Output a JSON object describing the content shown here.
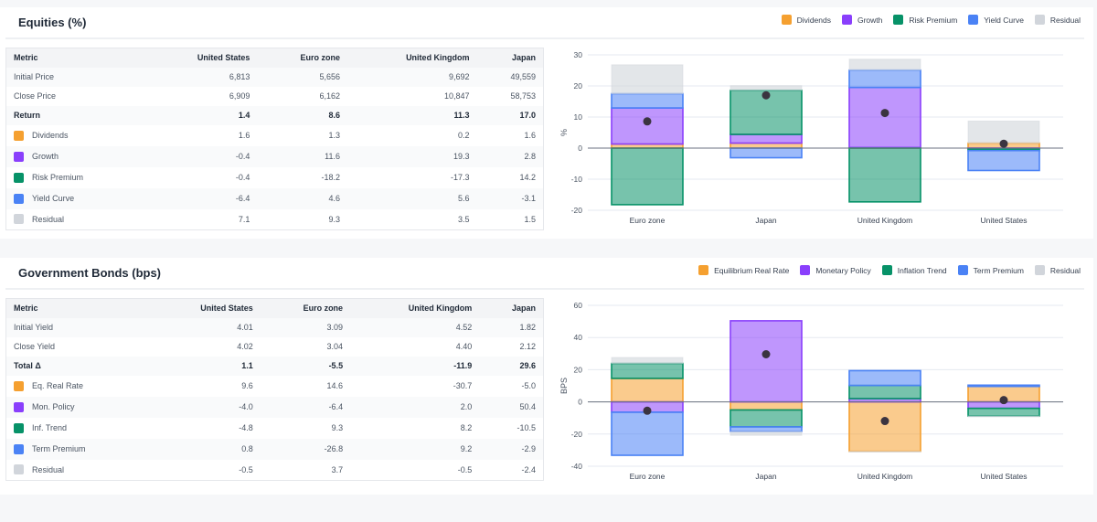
{
  "colors": {
    "orange": "#f5a030",
    "purple": "#8a3ffc",
    "green": "#079268",
    "blue": "#4a82f5",
    "gray": "#d1d5db"
  },
  "equities": {
    "title": "Equities (%)",
    "legend": [
      "Dividends",
      "Growth",
      "Risk Premium",
      "Yield Curve",
      "Residual"
    ],
    "columns": [
      "Metric",
      "United States",
      "Euro zone",
      "United Kingdom",
      "Japan"
    ],
    "rows": [
      {
        "label": "Initial Price",
        "values": [
          "6,813",
          "5,656",
          "9,692",
          "49,559"
        ]
      },
      {
        "label": "Close Price",
        "values": [
          "6,909",
          "6,162",
          "10,847",
          "58,753"
        ]
      },
      {
        "label": "Return",
        "values": [
          "1.4",
          "8.6",
          "11.3",
          "17.0"
        ],
        "bold": true
      },
      {
        "label": "Dividends",
        "values": [
          "1.6",
          "1.3",
          "0.2",
          "1.6"
        ],
        "color": "orange"
      },
      {
        "label": "Growth",
        "values": [
          "-0.4",
          "11.6",
          "19.3",
          "2.8"
        ],
        "color": "purple"
      },
      {
        "label": "Risk Premium",
        "values": [
          "-0.4",
          "-18.2",
          "-17.3",
          "14.2"
        ],
        "color": "green"
      },
      {
        "label": "Yield Curve",
        "values": [
          "-6.4",
          "4.6",
          "5.6",
          "-3.1"
        ],
        "color": "blue"
      },
      {
        "label": "Residual",
        "values": [
          "7.1",
          "9.3",
          "3.5",
          "1.5"
        ],
        "color": "gray"
      }
    ]
  },
  "bonds": {
    "title": "Government Bonds (bps)",
    "legend": [
      "Equilibrium Real Rate",
      "Monetary Policy",
      "Inflation Trend",
      "Term Premium",
      "Residual"
    ],
    "columns": [
      "Metric",
      "United States",
      "Euro zone",
      "United Kingdom",
      "Japan"
    ],
    "rows": [
      {
        "label": "Initial Yield",
        "values": [
          "4.01",
          "3.09",
          "4.52",
          "1.82"
        ]
      },
      {
        "label": "Close Yield",
        "values": [
          "4.02",
          "3.04",
          "4.40",
          "2.12"
        ]
      },
      {
        "label": "Total Δ",
        "values": [
          "1.1",
          "-5.5",
          "-11.9",
          "29.6"
        ],
        "bold": true
      },
      {
        "label": "Eq. Real Rate",
        "values": [
          "9.6",
          "14.6",
          "-30.7",
          "-5.0"
        ],
        "color": "orange"
      },
      {
        "label": "Mon. Policy",
        "values": [
          "-4.0",
          "-6.4",
          "2.0",
          "50.4"
        ],
        "color": "purple"
      },
      {
        "label": "Inf. Trend",
        "values": [
          "-4.8",
          "9.3",
          "8.2",
          "-10.5"
        ],
        "color": "green"
      },
      {
        "label": "Term Premium",
        "values": [
          "0.8",
          "-26.8",
          "9.2",
          "-2.9"
        ],
        "color": "blue"
      },
      {
        "label": "Residual",
        "values": [
          "-0.5",
          "3.7",
          "-0.5",
          "-2.4"
        ],
        "color": "gray"
      }
    ]
  },
  "chart_data": [
    {
      "type": "bar",
      "barmode": "relative",
      "ylabel": "%",
      "ylim": [
        -20,
        30
      ],
      "yticks": [
        -20,
        -10,
        0,
        10,
        20,
        30
      ],
      "grid": true,
      "legend": "top-right",
      "categories": [
        "Euro zone",
        "Japan",
        "United Kingdom",
        "United States"
      ],
      "series": [
        {
          "name": "Dividends",
          "color": "orange",
          "values": [
            1.3,
            1.6,
            0.2,
            1.6
          ]
        },
        {
          "name": "Growth",
          "color": "purple",
          "values": [
            11.6,
            2.8,
            19.3,
            -0.4
          ]
        },
        {
          "name": "Risk Premium",
          "color": "green",
          "values": [
            -18.2,
            14.2,
            -17.3,
            -0.4
          ]
        },
        {
          "name": "Yield Curve",
          "color": "blue",
          "values": [
            4.6,
            -3.1,
            5.6,
            -6.4
          ]
        },
        {
          "name": "Residual",
          "color": "gray",
          "values": [
            9.3,
            1.5,
            3.5,
            7.1
          ]
        }
      ],
      "totals": [
        8.6,
        17.0,
        11.3,
        1.4
      ]
    },
    {
      "type": "bar",
      "barmode": "relative",
      "ylabel": "BPS",
      "ylim": [
        -40,
        60
      ],
      "yticks": [
        -40,
        -20,
        0,
        20,
        40,
        60
      ],
      "grid": true,
      "legend": "top-right",
      "categories": [
        "Euro zone",
        "Japan",
        "United Kingdom",
        "United States"
      ],
      "series": [
        {
          "name": "Equilibrium Real Rate",
          "color": "orange",
          "values": [
            14.6,
            -5.0,
            -30.7,
            9.6
          ]
        },
        {
          "name": "Monetary Policy",
          "color": "purple",
          "values": [
            -6.4,
            50.4,
            2.0,
            -4.0
          ]
        },
        {
          "name": "Inflation Trend",
          "color": "green",
          "values": [
            9.3,
            -10.5,
            8.2,
            -4.8
          ]
        },
        {
          "name": "Term Premium",
          "color": "blue",
          "values": [
            -26.8,
            -2.9,
            9.2,
            0.8
          ]
        },
        {
          "name": "Residual",
          "color": "gray",
          "values": [
            3.7,
            -2.4,
            -0.5,
            -0.5
          ]
        }
      ],
      "totals": [
        -5.5,
        29.6,
        -11.9,
        1.1
      ]
    }
  ]
}
